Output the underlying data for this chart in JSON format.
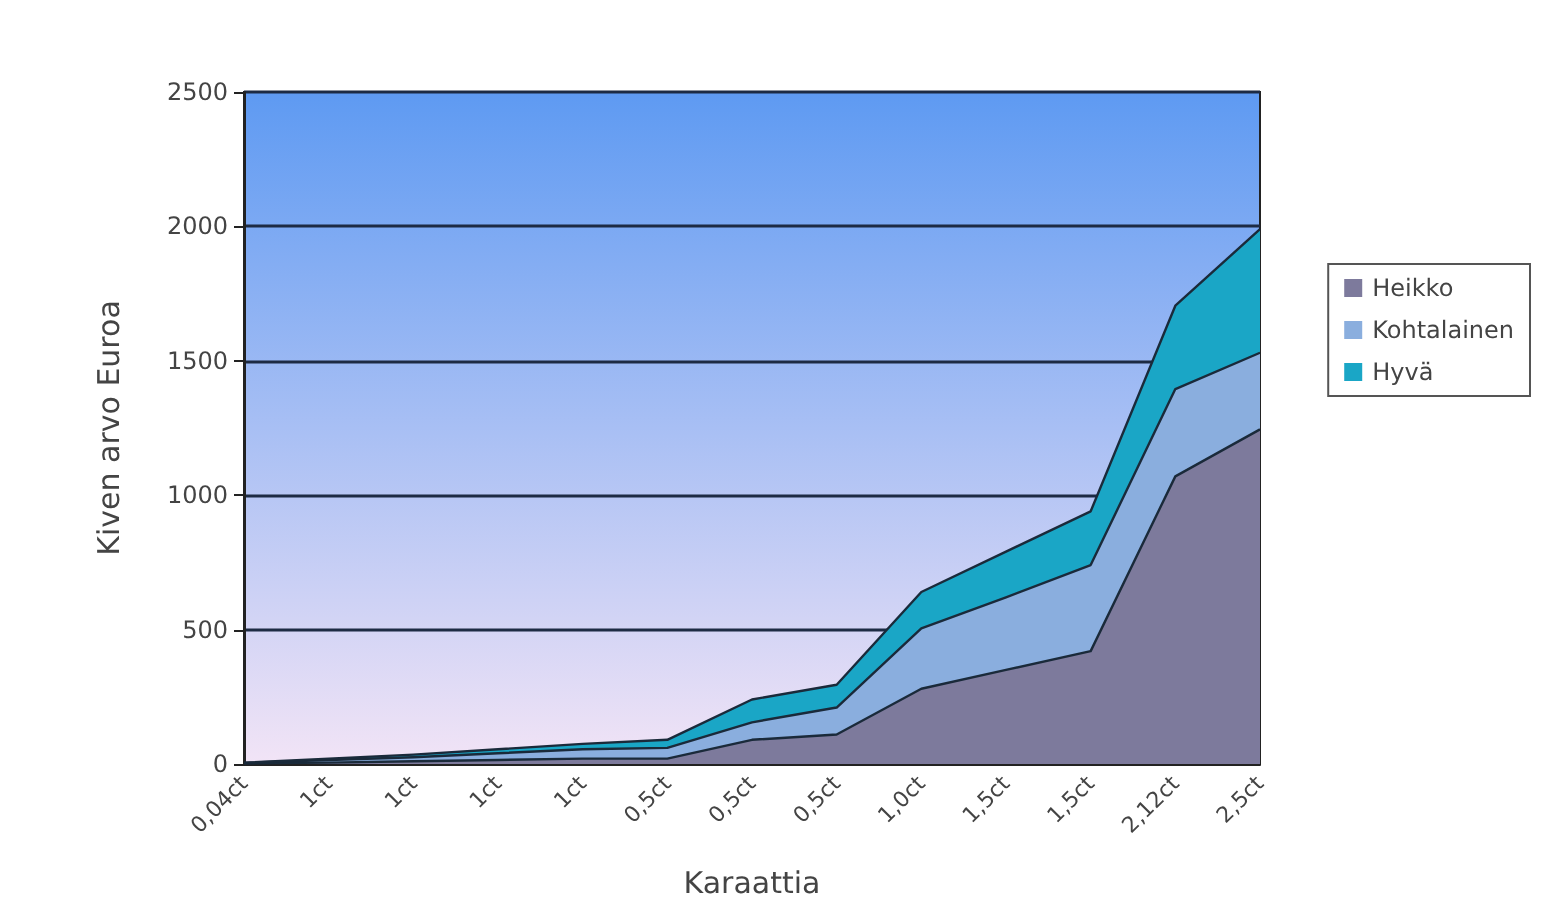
{
  "chart_data": {
    "type": "area",
    "stacked": true,
    "xlabel": "Karaattia",
    "ylabel": "Kiven arvo Euroa",
    "categories": [
      "0,04ct",
      "1ct",
      "1ct",
      "1ct",
      "1ct",
      "0,5ct",
      "0,5ct",
      "0,5ct",
      "1,0ct",
      "1,5ct",
      "1,5ct",
      "2,12ct",
      "2,5ct"
    ],
    "series": [
      {
        "name": "Heikko",
        "color": "#7d7a9c",
        "values": [
          2,
          5,
          10,
          15,
          20,
          20,
          90,
          110,
          280,
          350,
          420,
          1070,
          1245
        ]
      },
      {
        "name": "Kohtalainen",
        "color": "#8aaede",
        "values": [
          2,
          10,
          15,
          25,
          35,
          40,
          65,
          100,
          225,
          270,
          320,
          325,
          285
        ]
      },
      {
        "name": "Hyvä",
        "color": "#1aa6c6",
        "values": [
          1,
          5,
          10,
          15,
          20,
          30,
          85,
          85,
          135,
          170,
          200,
          310,
          460
        ]
      }
    ],
    "ylim": [
      0,
      2500
    ],
    "yticks": [
      0,
      500,
      1000,
      1500,
      2000,
      2500
    ],
    "grid": "y",
    "legend": "right",
    "marker": "none"
  }
}
